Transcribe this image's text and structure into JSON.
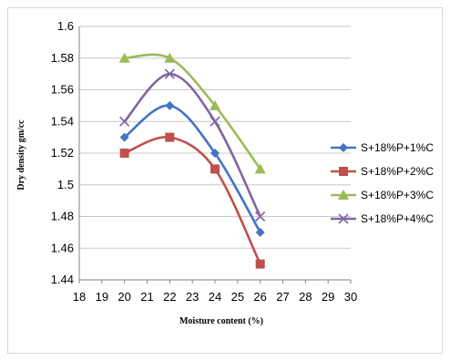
{
  "chart_data": {
    "type": "line",
    "title": "",
    "xlabel": "Moisture content  (%)",
    "ylabel": "Dry density  gm/cc",
    "xlim": [
      18,
      30
    ],
    "ylim": [
      1.44,
      1.6
    ],
    "x_ticks": [
      "18",
      "19",
      "20",
      "21",
      "22",
      "23",
      "24",
      "25",
      "26",
      "27",
      "28",
      "29",
      "30"
    ],
    "y_ticks": [
      "1.44",
      "1.46",
      "1.48",
      "1.5",
      "1.52",
      "1.54",
      "1.56",
      "1.58",
      "1.6"
    ],
    "grid": "horizontal",
    "smooth": true,
    "legend_position": "right",
    "x": [
      20,
      22,
      24,
      26
    ],
    "series": [
      {
        "name": "S+18%P+1%C",
        "values": [
          1.53,
          1.55,
          1.52,
          1.47
        ],
        "color": "#4472c4",
        "marker": "diamond"
      },
      {
        "name": "S+18%P+2%C",
        "values": [
          1.52,
          1.53,
          1.51,
          1.45
        ],
        "color": "#c0504d",
        "marker": "square"
      },
      {
        "name": "S+18%P+3%C",
        "values": [
          1.58,
          1.58,
          1.55,
          1.51
        ],
        "color": "#9bbb59",
        "marker": "triangle"
      },
      {
        "name": "S+18%P+4%C",
        "values": [
          1.54,
          1.57,
          1.54,
          1.48
        ],
        "color": "#8064a2",
        "marker": "x"
      }
    ]
  }
}
